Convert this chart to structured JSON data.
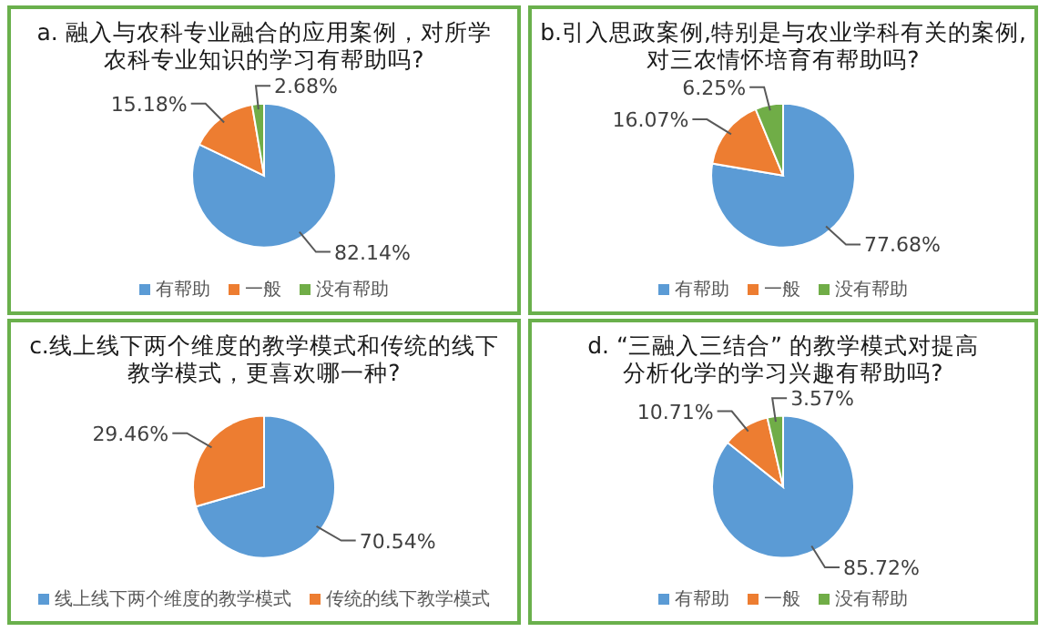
{
  "chart_data": [
    {
      "type": "pie",
      "title": "a. 融入与农科专业融合的应用案例，对所学农科专业知识的学习有帮助吗?",
      "categories": [
        "有帮助",
        "一般",
        "没有帮助"
      ],
      "values": [
        82.14,
        15.18,
        2.68
      ],
      "value_labels": [
        "82.14%",
        "15.18%",
        "2.68%"
      ],
      "colors": [
        "#5b9bd5",
        "#ed7d31",
        "#70ad47"
      ],
      "legend": "bottom"
    },
    {
      "type": "pie",
      "title": "b.引入思政案例,特别是与农业学科有关的案例,对三农情怀培育有帮助吗?",
      "categories": [
        "有帮助",
        "一般",
        "没有帮助"
      ],
      "values": [
        77.68,
        16.07,
        6.25
      ],
      "value_labels": [
        "77.68%",
        "16.07%",
        "6.25%"
      ],
      "colors": [
        "#5b9bd5",
        "#ed7d31",
        "#70ad47"
      ],
      "legend": "bottom"
    },
    {
      "type": "pie",
      "title": "c.线上线下两个维度的教学模式和传统的线下教学模式，更喜欢哪一种?",
      "categories": [
        "线上线下两个维度的教学模式",
        "传统的线下教学模式"
      ],
      "values": [
        70.54,
        29.46
      ],
      "value_labels": [
        "70.54%",
        "29.46%"
      ],
      "colors": [
        "#5b9bd5",
        "#ed7d31"
      ],
      "legend": "bottom"
    },
    {
      "type": "pie",
      "title": "d. “三融入三结合” 的教学模式对提高分析化学的学习兴趣有帮助吗?",
      "categories": [
        "有帮助",
        "一般",
        "没有帮助"
      ],
      "values": [
        85.72,
        10.71,
        3.57
      ],
      "value_labels": [
        "85.72%",
        "10.71%",
        "3.57%"
      ],
      "colors": [
        "#5b9bd5",
        "#ed7d31",
        "#70ad47"
      ],
      "legend": "bottom"
    }
  ]
}
